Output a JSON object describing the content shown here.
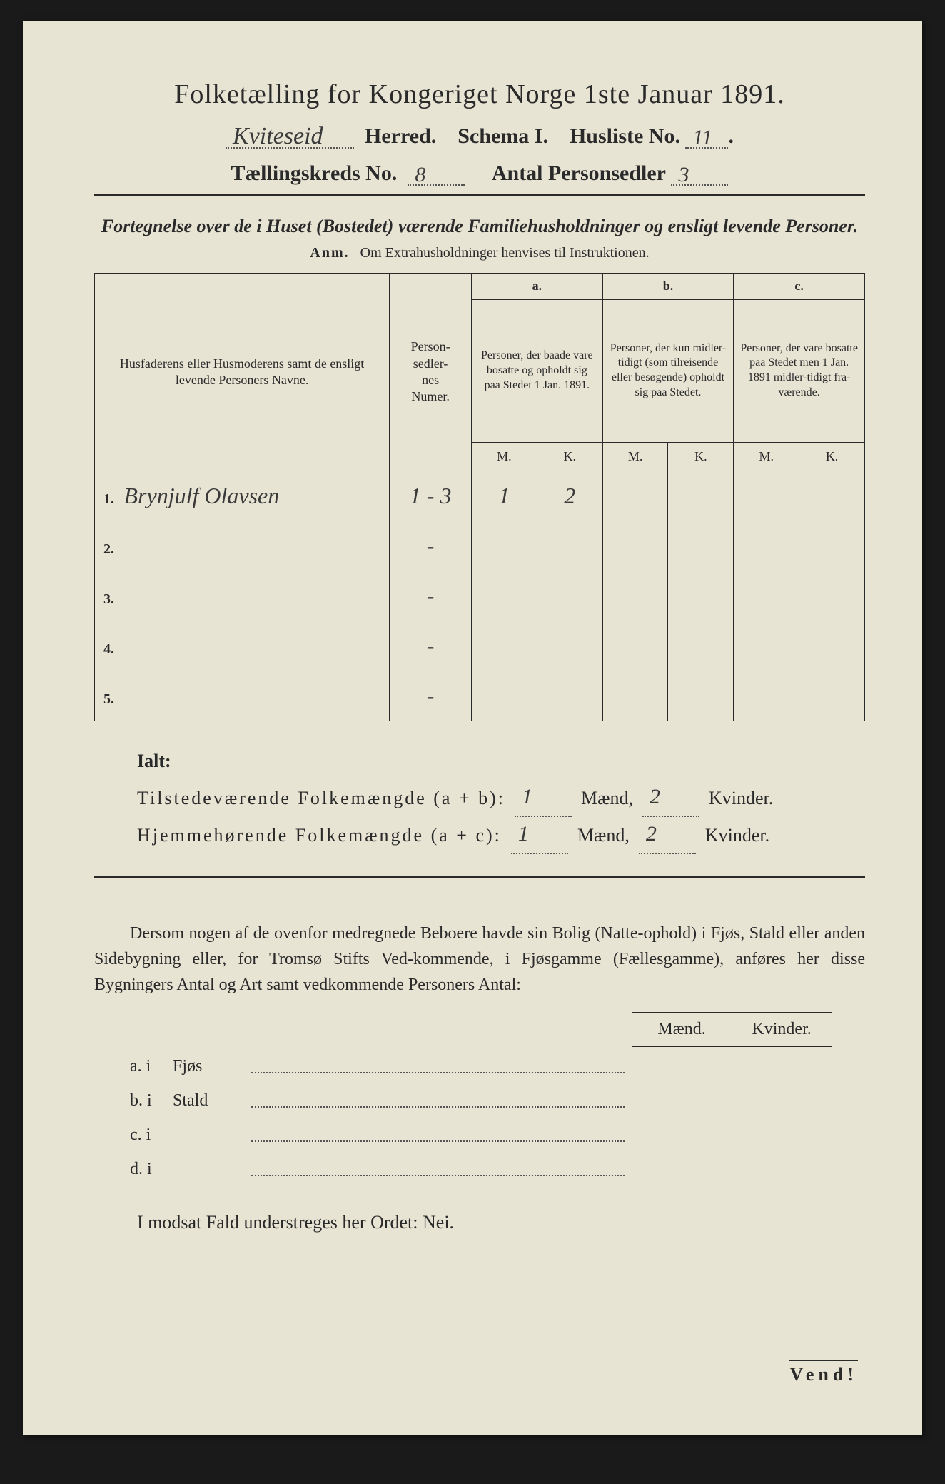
{
  "title": "Folketælling for Kongeriget Norge 1ste Januar 1891.",
  "header": {
    "herred_value": "Kviteseid",
    "herred_label": "Herred.",
    "schema_label": "Schema I.",
    "husliste_label": "Husliste No.",
    "husliste_value": "11",
    "kreds_label": "Tællingskreds No.",
    "kreds_value": "8",
    "personsedler_label": "Antal Personsedler",
    "personsedler_value": "3"
  },
  "subtitle": "Fortegnelse over de i Huset (Bostedet) værende Familiehusholdninger og ensligt levende Personer.",
  "anm_prefix": "Anm.",
  "anm_text": "Om Extrahusholdninger henvises til Instruktionen.",
  "table": {
    "col_name": "Husfaderens eller Husmoderens samt de ensligt levende Personers Navne.",
    "col_num": "Person-\nsedler-\nnes\nNumer.",
    "col_a_label": "a.",
    "col_a": "Personer, der baade vare bosatte og opholdt sig paa Stedet 1 Jan. 1891.",
    "col_b_label": "b.",
    "col_b": "Personer, der kun midler-tidigt (som tilreisende eller besøgende) opholdt sig paa Stedet.",
    "col_c_label": "c.",
    "col_c": "Personer, der vare bosatte paa Stedet men 1 Jan. 1891 midler-tidigt fra-værende.",
    "m": "M.",
    "k": "K.",
    "rows": [
      {
        "no": "1.",
        "name": "Brynjulf Olavsen",
        "num": "1 - 3",
        "a_m": "1",
        "a_k": "2",
        "b_m": "",
        "b_k": "",
        "c_m": "",
        "c_k": ""
      },
      {
        "no": "2.",
        "name": "",
        "num": "-",
        "a_m": "",
        "a_k": "",
        "b_m": "",
        "b_k": "",
        "c_m": "",
        "c_k": ""
      },
      {
        "no": "3.",
        "name": "",
        "num": "-",
        "a_m": "",
        "a_k": "",
        "b_m": "",
        "b_k": "",
        "c_m": "",
        "c_k": ""
      },
      {
        "no": "4.",
        "name": "",
        "num": "-",
        "a_m": "",
        "a_k": "",
        "b_m": "",
        "b_k": "",
        "c_m": "",
        "c_k": ""
      },
      {
        "no": "5.",
        "name": "",
        "num": "-",
        "a_m": "",
        "a_k": "",
        "b_m": "",
        "b_k": "",
        "c_m": "",
        "c_k": ""
      }
    ]
  },
  "ialt": {
    "heading": "Ialt:",
    "line1_label": "Tilstedeværende Folkemængde (a + b):",
    "line1_m": "1",
    "maend": "Mænd,",
    "line1_k": "2",
    "kvinder": "Kvinder.",
    "line2_label": "Hjemmehørende Folkemængde (a + c):",
    "line2_m": "1",
    "line2_k": "2"
  },
  "paragraph": "Dersom nogen af de ovenfor medregnede Beboere havde sin Bolig (Natte-ophold) i Fjøs, Stald eller anden Sidebygning eller, for Tromsø Stifts Ved-kommende, i Fjøsgamme (Fællesgamme), anføres her disse Bygningers Antal og Art samt vedkommende Personers Antal:",
  "mini": {
    "maend": "Mænd.",
    "kvinder": "Kvinder.",
    "rows": [
      {
        "lab": "a.  i",
        "txt": "Fjøs"
      },
      {
        "lab": "b.  i",
        "txt": "Stald"
      },
      {
        "lab": "c.  i",
        "txt": ""
      },
      {
        "lab": "d.  i",
        "txt": ""
      }
    ]
  },
  "final": "I modsat Fald understreges her Ordet: Nei.",
  "vend": "Vend!"
}
